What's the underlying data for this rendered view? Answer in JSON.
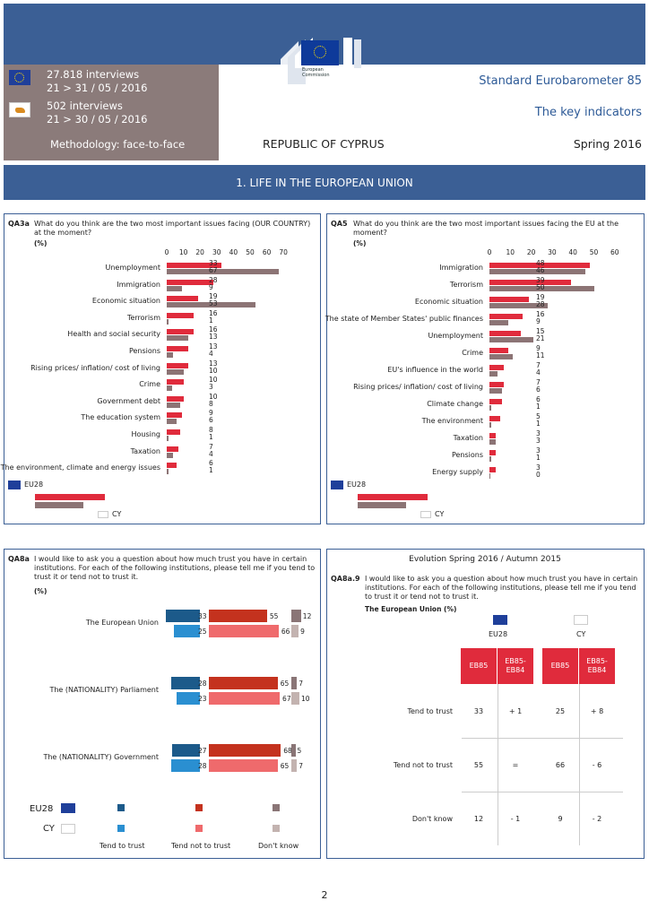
{
  "header": {
    "eu_interviews": "27.818 interviews",
    "eu_dates": "21 > 31 / 05 / 2016",
    "cy_interviews": "502 interviews",
    "cy_dates": "21 > 30 / 05 / 2016",
    "methodology": "Methodology: face-to-face",
    "country": "REPUBLIC OF CYPRUS",
    "survey": "Standard Eurobarometer 85",
    "subtitle": "The key indicators",
    "season": "Spring 2016",
    "logo_text_1": "European",
    "logo_text_2": "Commission"
  },
  "section_title": "1. LIFE IN THE EUROPEAN UNION",
  "qa3a": {
    "code": "QA3a",
    "question": "What do you think are the two most important issues facing (OUR COUNTRY) at the moment?",
    "unit": "(%)",
    "ticks": [
      "0",
      "10",
      "20",
      "30",
      "40",
      "50",
      "60",
      "70"
    ],
    "legend_eu": "EU28",
    "legend_cy": "CY",
    "chart_data": {
      "type": "bar",
      "categories": [
        "Unemployment",
        "Immigration",
        "Economic situation",
        "Terrorism",
        "Health and social security",
        "Pensions",
        "Rising prices/ inflation/ cost of living",
        "Crime",
        "Government debt",
        "The education system",
        "Housing",
        "Taxation",
        "The environment, climate and energy issues"
      ],
      "series": [
        {
          "name": "EU28",
          "values": [
            33,
            28,
            19,
            16,
            16,
            13,
            13,
            10,
            10,
            9,
            8,
            7,
            6
          ]
        },
        {
          "name": "CY",
          "values": [
            67,
            9,
            53,
            1,
            13,
            4,
            10,
            3,
            8,
            6,
            1,
            4,
            1
          ]
        }
      ],
      "xlim": [
        0,
        70
      ]
    }
  },
  "qa5": {
    "code": "QA5",
    "question": "What do you think are the two most important issues facing the EU at the moment?",
    "unit": "(%)",
    "ticks": [
      "0",
      "10",
      "20",
      "30",
      "40",
      "50",
      "60"
    ],
    "legend_eu": "EU28",
    "legend_cy": "CY",
    "chart_data": {
      "type": "bar",
      "categories": [
        "Immigration",
        "Terrorism",
        "Economic situation",
        "The state of Member States' public finances",
        "Unemployment",
        "Crime",
        "EU's influence in the world",
        "Rising prices/ inflation/ cost of living",
        "Climate change",
        "The environment",
        "Taxation",
        "Pensions",
        "Energy supply"
      ],
      "series": [
        {
          "name": "EU28",
          "values": [
            48,
            39,
            19,
            16,
            15,
            9,
            7,
            7,
            6,
            5,
            3,
            3,
            3
          ]
        },
        {
          "name": "CY",
          "values": [
            46,
            50,
            28,
            9,
            21,
            11,
            4,
            6,
            1,
            1,
            3,
            1,
            0
          ]
        }
      ],
      "xlim": [
        0,
        60
      ]
    }
  },
  "qa8a": {
    "code": "QA8a",
    "question": "I would like to ask you a question about how much trust you have in certain institutions. For each of the following institutions, please tell me if you tend to trust it or tend not to trust it.",
    "unit": "(%)",
    "legend_eu": "EU28",
    "legend_cy": "CY",
    "legend_labels": [
      "Tend to trust",
      "Tend not to trust",
      "Don't know"
    ],
    "colors": {
      "eu_trust": "#1c5a8a",
      "cy_trust": "#2a8fd1",
      "eu_not": "#c4321e",
      "cy_not": "#ef6a6c",
      "eu_dk": "#8a7576",
      "cy_dk": "#c3b3b0"
    },
    "chart_data": {
      "type": "bar",
      "categories": [
        "The European Union",
        "The (NATIONALITY) Parliament",
        "The (NATIONALITY) Government"
      ],
      "series": [
        {
          "name": "EU28",
          "values": [
            [
              33,
              55,
              12
            ],
            [
              28,
              65,
              7
            ],
            [
              27,
              68,
              5
            ]
          ]
        },
        {
          "name": "CY",
          "values": [
            [
              25,
              66,
              9
            ],
            [
              23,
              67,
              10
            ],
            [
              28,
              65,
              7
            ]
          ]
        }
      ]
    }
  },
  "evolution": {
    "title": "Evolution Spring 2016 / Autumn 2015",
    "code": "QA8a.9",
    "question": "I would like to ask you a question about how much trust you have in certain institutions. For each of the following institutions, please tell me if you tend to trust it or tend not to trust it.",
    "subject": "The European Union  (%)",
    "col_eu": "EU28",
    "col_cy": "CY",
    "headers": [
      "EB85",
      "EB85-\nEB84",
      "EB85",
      "EB85-\nEB84"
    ],
    "rows": [
      {
        "label": "Tend to trust",
        "cells": [
          "33",
          "+ 1",
          "25",
          "+ 8"
        ]
      },
      {
        "label": "Tend not to trust",
        "cells": [
          "55",
          "=",
          "66",
          "- 6"
        ]
      },
      {
        "label": "Don't know",
        "cells": [
          "12",
          "- 1",
          "9",
          "- 2"
        ]
      }
    ]
  },
  "page_number": "2"
}
